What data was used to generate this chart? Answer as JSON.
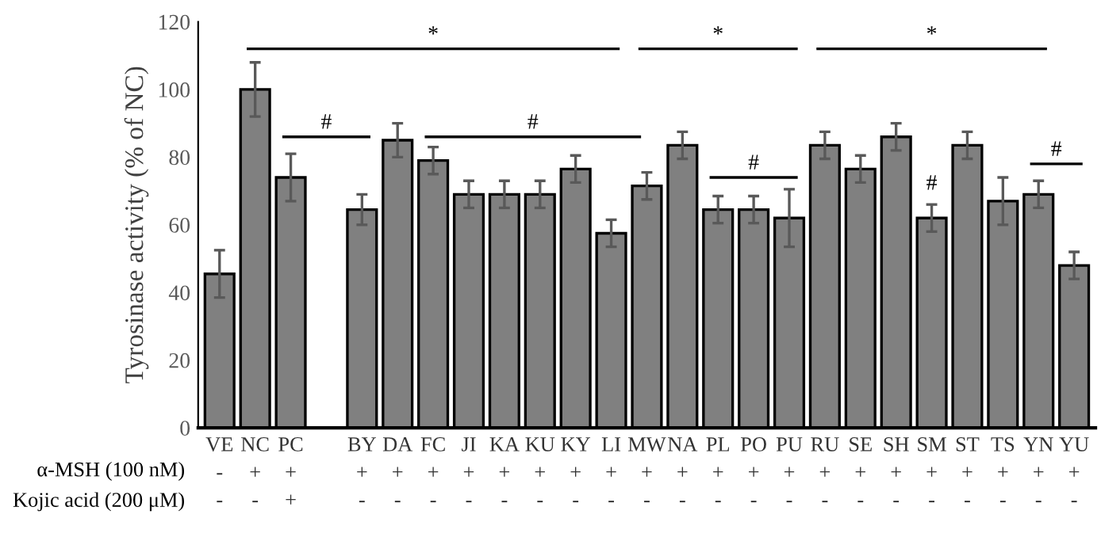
{
  "chart_data": {
    "type": "bar",
    "ylabel": "Tyrosinase activity (% of NC)",
    "categories": [
      "VE\n-\n-",
      "NC\n+\n-",
      "PC\n+\n+",
      null,
      "BY\n+\n-",
      "DA\n+\n-",
      "FC\n+\n-",
      "JI\n+\n-",
      "KA\n+\n-",
      "KU\n+\n-",
      "KY\n+\n-",
      "LI\n+\n-",
      "MW\n+\n-",
      "NA\n+\n-",
      "PL\n+\n-",
      "PO\n+\n-",
      "PU\n+\n-",
      "RU\n+\n-",
      "SE\n+\n-",
      "SH\n+\n-",
      "SM\n+\n-",
      "ST\n+\n-",
      "TS\n+\n-",
      "YN\n+\n-",
      "YU\n+\n-"
    ],
    "values": [
      45.5,
      100,
      74,
      null,
      64.5,
      85,
      79,
      69,
      69,
      69,
      76.5,
      57.5,
      71.5,
      83.5,
      64.5,
      64.5,
      62,
      83.5,
      76.5,
      86,
      62,
      83.5,
      67,
      69,
      48
    ],
    "errors": [
      7,
      8,
      7,
      null,
      4.5,
      5,
      4,
      4,
      4,
      4,
      4,
      4,
      4,
      4,
      4,
      4,
      8.5,
      4,
      4,
      4,
      4,
      4,
      7,
      4,
      4
    ],
    "color": "#808080",
    "ylim": [
      0,
      120
    ],
    "yticks": [
      0,
      20,
      40,
      60,
      80,
      100,
      120
    ],
    "grid": false,
    "legend": false,
    "annotations": [
      "*",
      "*",
      "*",
      "#",
      "#",
      "#",
      "#",
      "#",
      "α-MSH (100 nM)",
      "Kojic acid (200 μM)"
    ]
  }
}
